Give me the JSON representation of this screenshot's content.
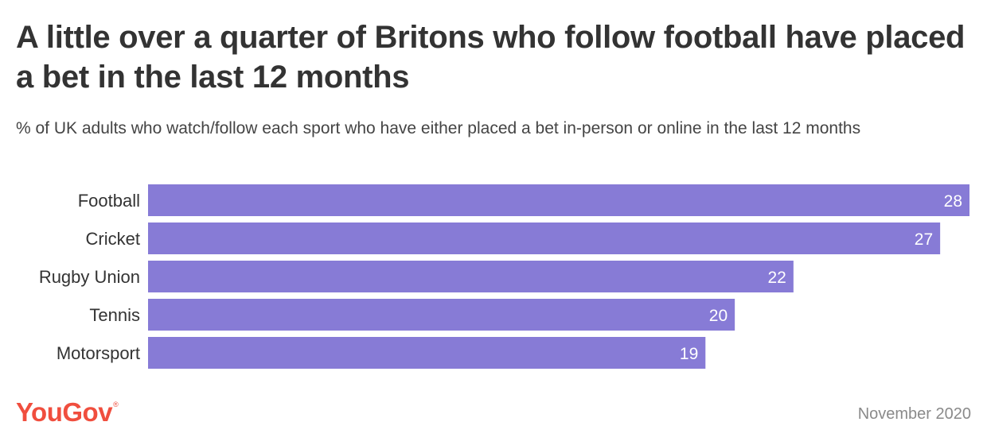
{
  "title": "A little over a quarter of Britons who follow football have placed a bet in the last 12 months",
  "subtitle": "% of UK adults who watch/follow each sport who have either placed a bet in-person or online in the last 12 months",
  "brand": {
    "logo_text": "YouGov",
    "registered_mark": "®",
    "logo_color": "#f04e3e"
  },
  "footer": {
    "date": "November 2020"
  },
  "chart_data": {
    "type": "bar",
    "orientation": "horizontal",
    "categories": [
      "Football",
      "Cricket",
      "Rugby Union",
      "Tennis",
      "Motorsport"
    ],
    "values": [
      28,
      27,
      22,
      20,
      19
    ],
    "data_labels": [
      "28",
      "27",
      "22",
      "20",
      "19"
    ],
    "xlim": [
      0,
      28
    ],
    "bar_color": "#877bd6",
    "grid": false,
    "legend": "none"
  }
}
